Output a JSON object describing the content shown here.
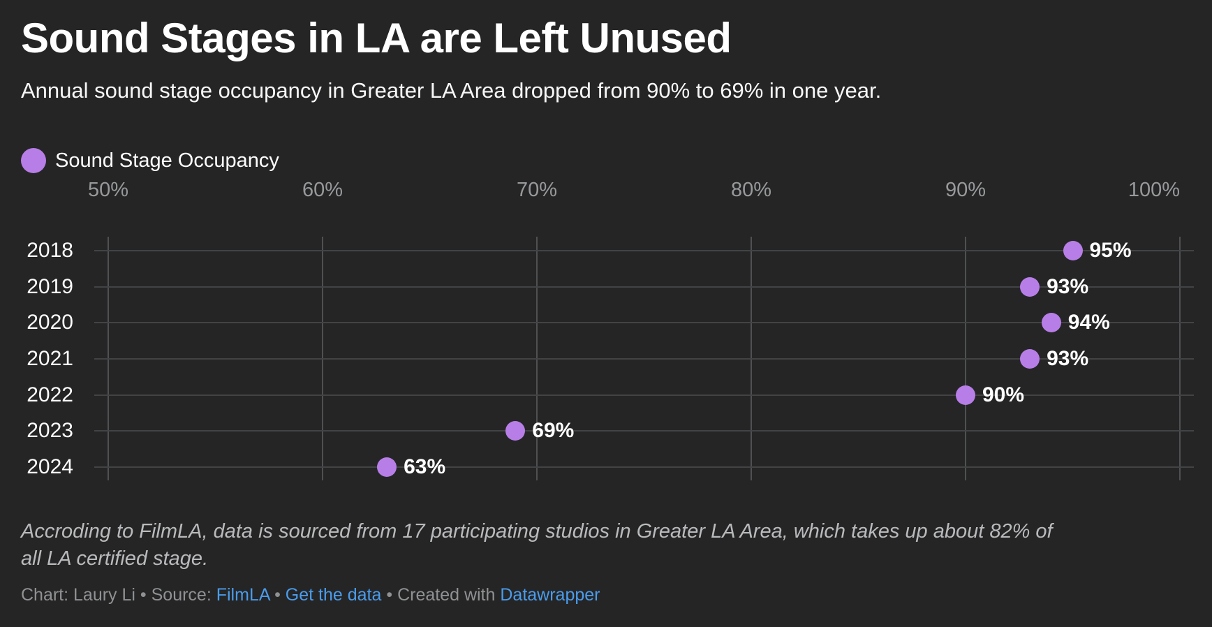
{
  "title": "Sound Stages in LA are Left Unused",
  "subtitle": "Annual sound stage occupancy in Greater LA Area dropped from 90% to 69% in one year.",
  "legend": {
    "label": "Sound Stage Occupancy",
    "color": "#b87ee8"
  },
  "chart_data": {
    "type": "scatter",
    "variant": "horizontal-dot-plot",
    "title": "Sound Stages in LA are Left Unused",
    "series_name": "Sound Stage Occupancy",
    "categories": [
      "2018",
      "2019",
      "2020",
      "2021",
      "2022",
      "2023",
      "2024"
    ],
    "values": [
      95,
      93,
      94,
      93,
      90,
      69,
      63
    ],
    "value_labels": [
      "95%",
      "93%",
      "94%",
      "93%",
      "90%",
      "69%",
      "63%"
    ],
    "xlim": [
      50,
      100
    ],
    "x_ticks": [
      50,
      60,
      70,
      80,
      90,
      100
    ],
    "x_tick_labels": [
      "50%",
      "60%",
      "70%",
      "80%",
      "90%",
      "100%"
    ],
    "grid": true,
    "legend_position": "top-left",
    "dot_color": "#b87ee8"
  },
  "footnote": {
    "line1": "Accroding to FilmLA, data is sourced from 17 participating studios in Greater LA Area, which takes up about 82% of",
    "line2": "all LA certified stage."
  },
  "credits": {
    "chart_by": "Chart: Laury Li",
    "sep": " • ",
    "source_label": "Source: ",
    "source_link": "FilmLA",
    "get_data_link": "Get the data",
    "created_with": "Created with ",
    "tool_link": "Datawrapper"
  },
  "colors": {
    "background": "#252526",
    "text": "#ffffff",
    "axis_ticks": "#97999b",
    "grid_vertical": "#4f5052",
    "grid_horizontal": "#424344",
    "dot": "#b87ee8",
    "footnote": "#b9babc",
    "credits": "#8f9193",
    "link": "#4a9ceb"
  }
}
